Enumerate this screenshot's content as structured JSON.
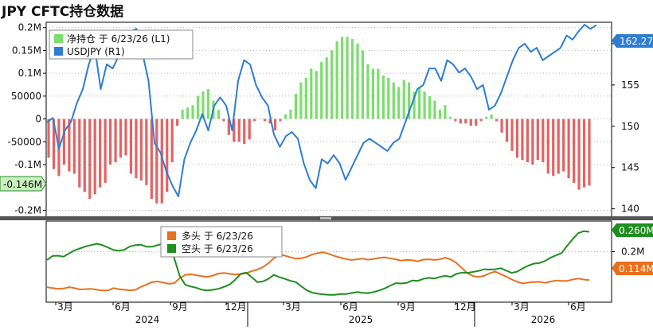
{
  "title": "JPY CFTC持仓数据",
  "colors": {
    "net_bar_pos": "#7CDD6E",
    "net_bar_neg": "#E06464",
    "usdjpy_line": "#2E7DD2",
    "long_line": "#E8701E",
    "short_line": "#1E8E1E",
    "background": "#FFFFFF",
    "last_value_left": "#C8F0C0",
    "last_value_right_blue": "#2E7DD2"
  },
  "chart_data": [
    {
      "type": "bar+line",
      "name": "net-position-vs-usdjpy",
      "legend": [
        {
          "label": "净持仓 于 6/23/26 (L1)",
          "color_key": "net_bar_pos"
        },
        {
          "label": "USDJPY (R1)",
          "color_key": "usdjpy_line"
        }
      ],
      "legend_position": "top-left",
      "left_axis": {
        "ticks": [
          -200000,
          -100000,
          -50000,
          0,
          50000,
          100000,
          150000,
          200000
        ],
        "tick_labels": [
          "-0.2M",
          "-0.1M",
          "-50000",
          "0",
          "50000",
          "0.1M",
          "0.15M",
          "0.2M"
        ],
        "range": [
          -215000,
          210000
        ]
      },
      "right_axis": {
        "ticks": [
          140,
          145,
          150,
          155,
          160
        ],
        "tick_labels": [
          "140",
          "145",
          "150",
          "155",
          "160"
        ],
        "range": [
          139,
          162.5
        ]
      },
      "last_values": {
        "left": "-0.146M",
        "right": "162.27"
      },
      "net_position": [
        -85000,
        -110000,
        -125000,
        -100000,
        -115000,
        -120000,
        -150000,
        -160000,
        -175000,
        -165000,
        -150000,
        -140000,
        -100000,
        -95000,
        -85000,
        -80000,
        -120000,
        -130000,
        -135000,
        -145000,
        -175000,
        -185000,
        -185000,
        -160000,
        -95000,
        -15000,
        20000,
        25000,
        30000,
        50000,
        60000,
        65000,
        40000,
        20000,
        -5000,
        -35000,
        -50000,
        -50000,
        -55000,
        -45000,
        -5000,
        0,
        -5000,
        -10000,
        -25000,
        -5000,
        10000,
        20000,
        55000,
        80000,
        90000,
        110000,
        105000,
        125000,
        135000,
        150000,
        170000,
        180000,
        180000,
        175000,
        165000,
        150000,
        120000,
        110000,
        110000,
        95000,
        90000,
        80000,
        70000,
        85000,
        80000,
        60000,
        70000,
        60000,
        50000,
        40000,
        20000,
        30000,
        5000,
        -5000,
        -10000,
        -10000,
        -15000,
        -15000,
        -5000,
        5000,
        10000,
        -5000,
        -30000,
        -50000,
        -70000,
        -85000,
        -90000,
        -95000,
        -100000,
        -90000,
        -95000,
        -120000,
        -125000,
        -120000,
        -115000,
        -130000,
        -140000,
        -155000,
        -150000,
        -146000
      ],
      "usdjpy": [
        150.5,
        151.0,
        147.3,
        149.5,
        150.5,
        152.8,
        154.5,
        157.5,
        159.5,
        154.5,
        157.5,
        157.0,
        158.5,
        159.5,
        161.5,
        161.8,
        158.8,
        155.5,
        148.0,
        146.8,
        144.5,
        142.8,
        141.5,
        146.0,
        148.0,
        149.5,
        151.5,
        149.5,
        152.5,
        153.5,
        152.5,
        149.5,
        155.5,
        158.0,
        157.5,
        155.0,
        153.5,
        152.5,
        149.0,
        147.5,
        148.8,
        149.3,
        148.5,
        145.5,
        143.5,
        142.5,
        146.0,
        145.5,
        146.5,
        145.5,
        143.5,
        145.0,
        146.5,
        148.0,
        148.5,
        148.0,
        147.5,
        147.0,
        148.0,
        148.5,
        150.5,
        152.5,
        154.5,
        155.0,
        157.0,
        157.0,
        155.5,
        158.0,
        157.5,
        156.5,
        157.0,
        156.0,
        154.5,
        155.0,
        152.0,
        152.5,
        154.0,
        156.0,
        158.0,
        159.5,
        160.0,
        159.0,
        159.5,
        158.0,
        158.5,
        159.0,
        159.5,
        161.0,
        160.5,
        161.5,
        162.3,
        161.8,
        162.27
      ],
      "time_axis": {
        "month_labels": [
          "3月",
          "6月",
          "9月",
          "12月",
          "3月",
          "6月",
          "9月",
          "12月",
          "3月",
          "6月"
        ],
        "year_labels": [
          "2024",
          "2025",
          "2026"
        ]
      }
    },
    {
      "type": "line",
      "name": "long-vs-short-positions",
      "legend": [
        {
          "label": "多头 于 6/23/26",
          "color_key": "long_line"
        },
        {
          "label": "空头 于 6/23/26",
          "color_key": "short_line"
        }
      ],
      "legend_position": "top-left",
      "right_axis": {
        "ticks": [
          0.2
        ],
        "tick_labels": [
          "0.2M"
        ],
        "range": [
          0.05,
          0.29
        ]
      },
      "last_values": {
        "short": "0.260M",
        "long": "0.114M"
      },
      "long": [
        0.093,
        0.09,
        0.088,
        0.089,
        0.093,
        0.09,
        0.086,
        0.087,
        0.088,
        0.085,
        0.083,
        0.083,
        0.09,
        0.087,
        0.085,
        0.083,
        0.085,
        0.094,
        0.101,
        0.108,
        0.11,
        0.107,
        0.103,
        0.105,
        0.12,
        0.13,
        0.132,
        0.129,
        0.126,
        0.124,
        0.128,
        0.134,
        0.136,
        0.133,
        0.131,
        0.132,
        0.135,
        0.141,
        0.146,
        0.153,
        0.165,
        0.18,
        0.191,
        0.188,
        0.183,
        0.179,
        0.18,
        0.185,
        0.192,
        0.196,
        0.198,
        0.193,
        0.187,
        0.182,
        0.178,
        0.175,
        0.177,
        0.179,
        0.176,
        0.178,
        0.181,
        0.183,
        0.18,
        0.177,
        0.173,
        0.175,
        0.174,
        0.171,
        0.176,
        0.177,
        0.175,
        0.177,
        0.182,
        0.176,
        0.166,
        0.15,
        0.135,
        0.126,
        0.124,
        0.127,
        0.135,
        0.14,
        0.132,
        0.125,
        0.116,
        0.109,
        0.104,
        0.107,
        0.108,
        0.109,
        0.106,
        0.11,
        0.113,
        0.112,
        0.112,
        0.116,
        0.119,
        0.116,
        0.114
      ],
      "short": [
        0.175,
        0.187,
        0.188,
        0.185,
        0.195,
        0.204,
        0.21,
        0.216,
        0.22,
        0.224,
        0.22,
        0.213,
        0.205,
        0.203,
        0.206,
        0.216,
        0.22,
        0.221,
        0.215,
        0.215,
        0.22,
        0.224,
        0.214,
        0.18,
        0.126,
        0.1,
        0.095,
        0.091,
        0.085,
        0.083,
        0.085,
        0.088,
        0.094,
        0.101,
        0.115,
        0.133,
        0.137,
        0.123,
        0.108,
        0.11,
        0.118,
        0.13,
        0.123,
        0.118,
        0.112,
        0.108,
        0.095,
        0.083,
        0.076,
        0.073,
        0.071,
        0.07,
        0.07,
        0.072,
        0.072,
        0.075,
        0.078,
        0.076,
        0.075,
        0.078,
        0.083,
        0.089,
        0.097,
        0.105,
        0.104,
        0.106,
        0.113,
        0.112,
        0.118,
        0.121,
        0.119,
        0.124,
        0.127,
        0.124,
        0.133,
        0.137,
        0.136,
        0.139,
        0.142,
        0.147,
        0.146,
        0.147,
        0.15,
        0.143,
        0.136,
        0.14,
        0.15,
        0.158,
        0.164,
        0.166,
        0.172,
        0.182,
        0.189,
        0.196,
        0.218,
        0.238,
        0.256,
        0.262,
        0.26
      ]
    }
  ]
}
